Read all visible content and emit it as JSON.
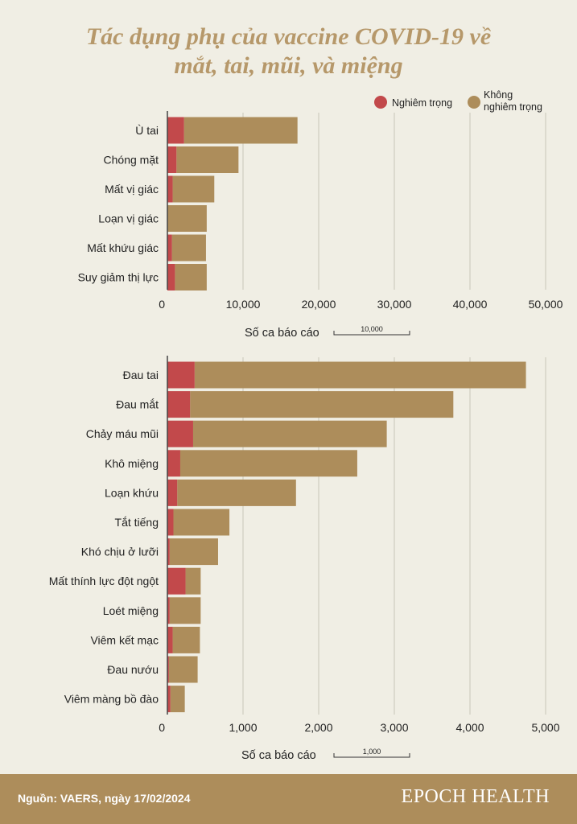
{
  "title_line1": "Tác dụng phụ của vaccine COVID-19 về",
  "title_line2": "mắt, tai, mũi, và miệng",
  "legend": {
    "serious": "Nghiêm trọng",
    "non_serious_line1": "Không",
    "non_serious_line2": "nghiêm trọng"
  },
  "colors": {
    "background": "#f0eee4",
    "serious": "#c2494b",
    "non_serious": "#ad8d5b",
    "title": "#b6986a",
    "footer": "#ad8d5b"
  },
  "chart_data": [
    {
      "type": "bar",
      "orientation": "horizontal",
      "stacked": true,
      "categories": [
        "Ù tai",
        "Chóng mặt",
        "Mất vị giác",
        "Loạn vị giác",
        "Mất khứu giác",
        "Suy giảm thị lực"
      ],
      "series": [
        {
          "name": "Nghiêm trọng",
          "values": [
            2200,
            1200,
            700,
            0,
            600,
            1000
          ]
        },
        {
          "name": "Không nghiêm trọng",
          "values": [
            15000,
            8200,
            5500,
            5200,
            4500,
            4200
          ]
        }
      ],
      "xlim": [
        0,
        50000
      ],
      "xticks": [
        "0",
        "10,000",
        "20,000",
        "30,000",
        "40,000",
        "50,000"
      ],
      "xlabel": "Số ca báo cáo",
      "scale_label": "10,000",
      "grid": true
    },
    {
      "type": "bar",
      "orientation": "horizontal",
      "stacked": true,
      "categories": [
        "Đau tai",
        "Đau mắt",
        "Chảy máu mũi",
        "Khô miệng",
        "Loạn khứu",
        "Tắt tiếng",
        "Khó chịu ở lưỡi",
        "Mất thính lực đột ngột",
        "Loét miệng",
        "Viêm kết mạc",
        "Đau nướu",
        "Viêm màng bồ đào"
      ],
      "series": [
        {
          "name": "Nghiêm trọng",
          "values": [
            360,
            300,
            340,
            170,
            130,
            80,
            30,
            240,
            30,
            70,
            20,
            40
          ]
        },
        {
          "name": "Không nghiêm trọng",
          "values": [
            4380,
            3480,
            2560,
            2340,
            1570,
            740,
            640,
            200,
            410,
            360,
            380,
            190
          ]
        }
      ],
      "xlim": [
        0,
        5000
      ],
      "xticks": [
        "0",
        "1,000",
        "2,000",
        "3,000",
        "4,000",
        "5,000"
      ],
      "xlabel": "Số ca báo cáo",
      "scale_label": "1,000",
      "grid": true
    }
  ],
  "footer": {
    "source": "Nguồn: VAERS, ngày 17/02/2024",
    "brand": "EPOCH HEALTH"
  }
}
